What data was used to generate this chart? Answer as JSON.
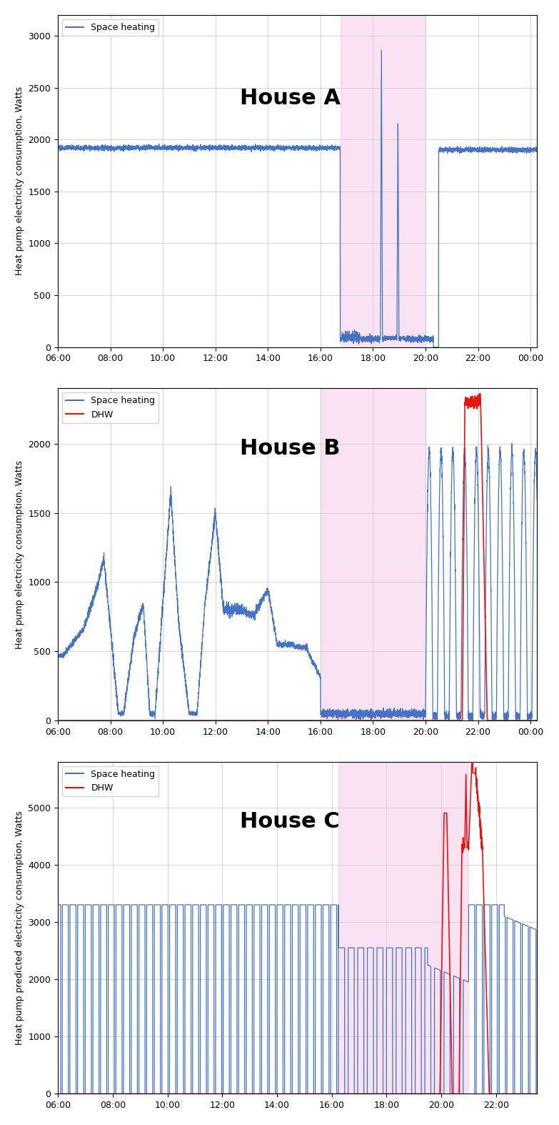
{
  "figure_size": [
    7.83,
    15.74
  ],
  "dpi": 100,
  "background_color": "#ffffff",
  "pink_shade": "#f0b8e0",
  "pink_alpha": 0.4,
  "house_a": {
    "title": "House A",
    "ylabel": "Heat pump electricity consumption, Watts",
    "ylim": [
      0,
      3200
    ],
    "yticks": [
      0,
      500,
      1000,
      1500,
      2000,
      2500,
      3000
    ],
    "shaded_region": [
      16.75,
      20.0
    ],
    "xstart": 6.0,
    "xend": 24.25,
    "xtick_values": [
      6,
      8,
      10,
      12,
      14,
      16,
      18,
      20,
      22,
      24
    ],
    "xtick_labels": [
      "06:00",
      "08:00",
      "10:00",
      "12:00",
      "14:00",
      "16:00",
      "18:00",
      "20:00",
      "22:00",
      "00:00"
    ]
  },
  "house_b": {
    "title": "House B",
    "ylabel": "Heat pump electricity consumption, Watts",
    "ylim": [
      0,
      2400
    ],
    "yticks": [
      0,
      500,
      1000,
      1500,
      2000
    ],
    "shaded_region": [
      16.0,
      20.0
    ],
    "xstart": 6.0,
    "xend": 24.25,
    "xtick_values": [
      6,
      8,
      10,
      12,
      14,
      16,
      18,
      20,
      22,
      24
    ],
    "xtick_labels": [
      "06:00",
      "08:00",
      "10:00",
      "12:00",
      "14:00",
      "16:00",
      "18:00",
      "20:00",
      "22:00",
      "00:00"
    ]
  },
  "house_c": {
    "title": "House C",
    "ylabel": "Heat pump predicted electricity consumption, Watts",
    "ylim": [
      0,
      5800
    ],
    "yticks": [
      0,
      1000,
      2000,
      3000,
      4000,
      5000
    ],
    "shaded_region": [
      16.25,
      21.0
    ],
    "xstart": 6.0,
    "xend": 23.5,
    "xtick_values": [
      6,
      8,
      10,
      12,
      14,
      16,
      18,
      20,
      22
    ],
    "xtick_labels": [
      "06:00",
      "08:00",
      "10:00",
      "12:00",
      "14:00",
      "16:00",
      "18:00",
      "20:00",
      "22:00"
    ]
  },
  "colors": {
    "space_heating": "#4472c4",
    "dhw": "#e81414",
    "grid": "#cccccc"
  }
}
